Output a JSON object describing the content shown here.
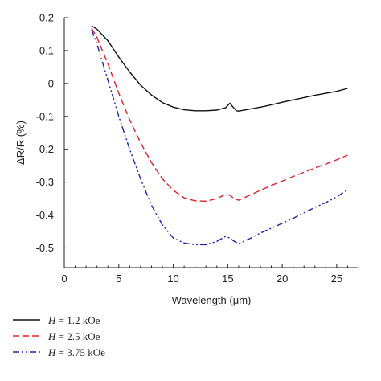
{
  "chart_data": {
    "type": "line",
    "title": "",
    "xlabel": "Wavelength (μm)",
    "ylabel": "ΔR/R (%)",
    "xlim": [
      0,
      27
    ],
    "ylim": [
      -0.56,
      0.2
    ],
    "xticks": [
      0,
      5,
      10,
      15,
      20,
      25
    ],
    "xtick_labels": [
      "0",
      "5",
      "10",
      "15",
      "20",
      "25"
    ],
    "yticks": [
      0.2,
      0.1,
      0,
      -0.1,
      -0.2,
      -0.3,
      -0.4,
      -0.5
    ],
    "ytick_labels": [
      "0.2",
      "0.1",
      "0",
      "-0.1",
      "-0.2",
      "-0.3",
      "-0.4",
      "-0.5"
    ],
    "grid": false,
    "legend_position": "bottom-left",
    "series": [
      {
        "name": "H = 1.2 kOe",
        "legend_var": "H",
        "legend_rest": " = 1.2 kOe",
        "color": "#111111",
        "dash": "solid",
        "x": [
          2.5,
          3,
          4,
          5,
          6,
          7,
          8,
          9,
          10,
          11,
          12,
          13,
          14,
          14.8,
          15.2,
          15.5,
          15.8,
          16,
          17,
          18,
          19,
          20,
          21,
          22,
          23,
          24,
          25,
          26
        ],
        "y": [
          0.175,
          0.165,
          0.13,
          0.08,
          0.035,
          -0.005,
          -0.035,
          -0.058,
          -0.072,
          -0.08,
          -0.083,
          -0.083,
          -0.081,
          -0.074,
          -0.06,
          -0.072,
          -0.083,
          -0.084,
          -0.078,
          -0.072,
          -0.065,
          -0.057,
          -0.05,
          -0.043,
          -0.036,
          -0.03,
          -0.024,
          -0.015
        ]
      },
      {
        "name": "H = 2.5 kOe",
        "legend_var": "H",
        "legend_rest": " = 2.5 kOe",
        "color": "#e0202a",
        "dash": "8,4",
        "x": [
          2.5,
          3,
          4,
          5,
          6,
          7,
          8,
          9,
          10,
          11,
          12,
          13,
          14,
          14.8,
          15.2,
          15.6,
          16,
          17,
          18,
          19,
          20,
          21,
          22,
          23,
          24,
          25,
          26
        ],
        "y": [
          0.168,
          0.14,
          0.06,
          -0.03,
          -0.11,
          -0.18,
          -0.24,
          -0.29,
          -0.325,
          -0.348,
          -0.357,
          -0.358,
          -0.35,
          -0.337,
          -0.34,
          -0.35,
          -0.355,
          -0.34,
          -0.325,
          -0.31,
          -0.297,
          -0.283,
          -0.27,
          -0.257,
          -0.245,
          -0.232,
          -0.218
        ]
      },
      {
        "name": "H = 3.75 kOe",
        "legend_var": "H",
        "legend_rest": " = 3.75 kOe",
        "color": "#2020b0",
        "dash": "8,3,2,3,2,3",
        "x": [
          2.5,
          3,
          4,
          5,
          6,
          7,
          8,
          9,
          10,
          11,
          12,
          13,
          14,
          14.8,
          15.2,
          15.6,
          16,
          17,
          18,
          19,
          20,
          21,
          22,
          23,
          24,
          25,
          26
        ],
        "y": [
          0.163,
          0.12,
          0.01,
          -0.1,
          -0.2,
          -0.29,
          -0.37,
          -0.43,
          -0.47,
          -0.485,
          -0.49,
          -0.49,
          -0.48,
          -0.465,
          -0.47,
          -0.48,
          -0.487,
          -0.472,
          -0.455,
          -0.44,
          -0.425,
          -0.41,
          -0.393,
          -0.377,
          -0.362,
          -0.345,
          -0.323
        ]
      }
    ]
  }
}
